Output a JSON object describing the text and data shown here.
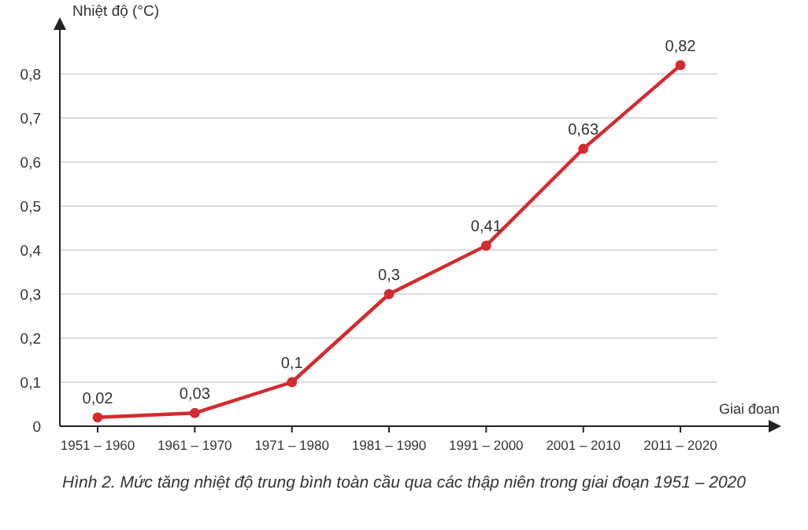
{
  "chart_data": {
    "type": "line",
    "ylabel": "Nhiệt độ (°C)",
    "xlabel": "Giai đoan",
    "categories": [
      "1951 – 1960",
      "1961 – 1970",
      "1971 – 1980",
      "1981 – 1990",
      "1991 – 2000",
      "2001 – 2010",
      "2011 – 2020"
    ],
    "series": [
      {
        "color": "#d42a2e",
        "values": [
          0.02,
          0.03,
          0.1,
          0.3,
          0.41,
          0.63,
          0.82
        ],
        "value_labels": [
          "0,02",
          "0,03",
          "0,1",
          "0,3",
          "0,41",
          "0,63",
          "0,82"
        ]
      }
    ],
    "ylim": [
      0,
      0.9
    ],
    "yticks": [
      {
        "value": 0,
        "label": "0"
      },
      {
        "value": 0.1,
        "label": "0,1"
      },
      {
        "value": 0.2,
        "label": "0,2"
      },
      {
        "value": 0.3,
        "label": "0,3"
      },
      {
        "value": 0.4,
        "label": "0,4"
      },
      {
        "value": 0.5,
        "label": "0,5"
      },
      {
        "value": 0.6,
        "label": "0,6"
      },
      {
        "value": 0.7,
        "label": "0,7"
      },
      {
        "value": 0.8,
        "label": "0,8"
      }
    ],
    "grid": "y",
    "marker": "circle",
    "line_style": "solid",
    "annotations": [
      "Hình 2. Mức tăng nhiệt độ trung bình toàn cầu qua các thập niên trong giai đoạn 1951 – 2020"
    ]
  }
}
